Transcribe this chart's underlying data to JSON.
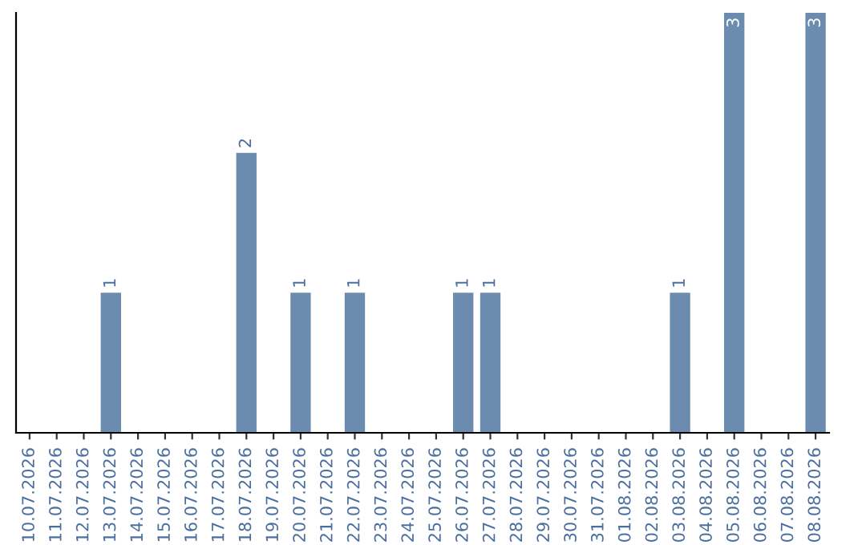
{
  "chart_data": {
    "type": "bar",
    "categories": [
      "10.07.2026",
      "11.07.2026",
      "12.07.2026",
      "13.07.2026",
      "14.07.2026",
      "15.07.2026",
      "16.07.2026",
      "17.07.2026",
      "18.07.2026",
      "19.07.2026",
      "20.07.2026",
      "21.07.2026",
      "22.07.2026",
      "23.07.2026",
      "24.07.2026",
      "25.07.2026",
      "26.07.2026",
      "27.07.2026",
      "28.07.2026",
      "29.07.2026",
      "30.07.2026",
      "31.07.2026",
      "01.08.2026",
      "02.08.2026",
      "03.08.2026",
      "04.08.2026",
      "05.08.2026",
      "06.08.2026",
      "07.08.2026",
      "08.08.2026"
    ],
    "values": [
      0,
      0,
      0,
      1,
      0,
      0,
      0,
      0,
      2,
      0,
      1,
      0,
      1,
      0,
      0,
      0,
      1,
      1,
      0,
      0,
      0,
      0,
      0,
      0,
      1,
      0,
      3,
      0,
      0,
      3
    ],
    "value_labels": [
      null,
      null,
      null,
      "1",
      null,
      null,
      null,
      null,
      "2",
      null,
      "1",
      null,
      "1",
      null,
      null,
      null,
      "1",
      "1",
      null,
      null,
      null,
      null,
      null,
      null,
      "1",
      null,
      "3",
      null,
      null,
      "3"
    ],
    "color": "#6b8cae",
    "grid": false
  }
}
